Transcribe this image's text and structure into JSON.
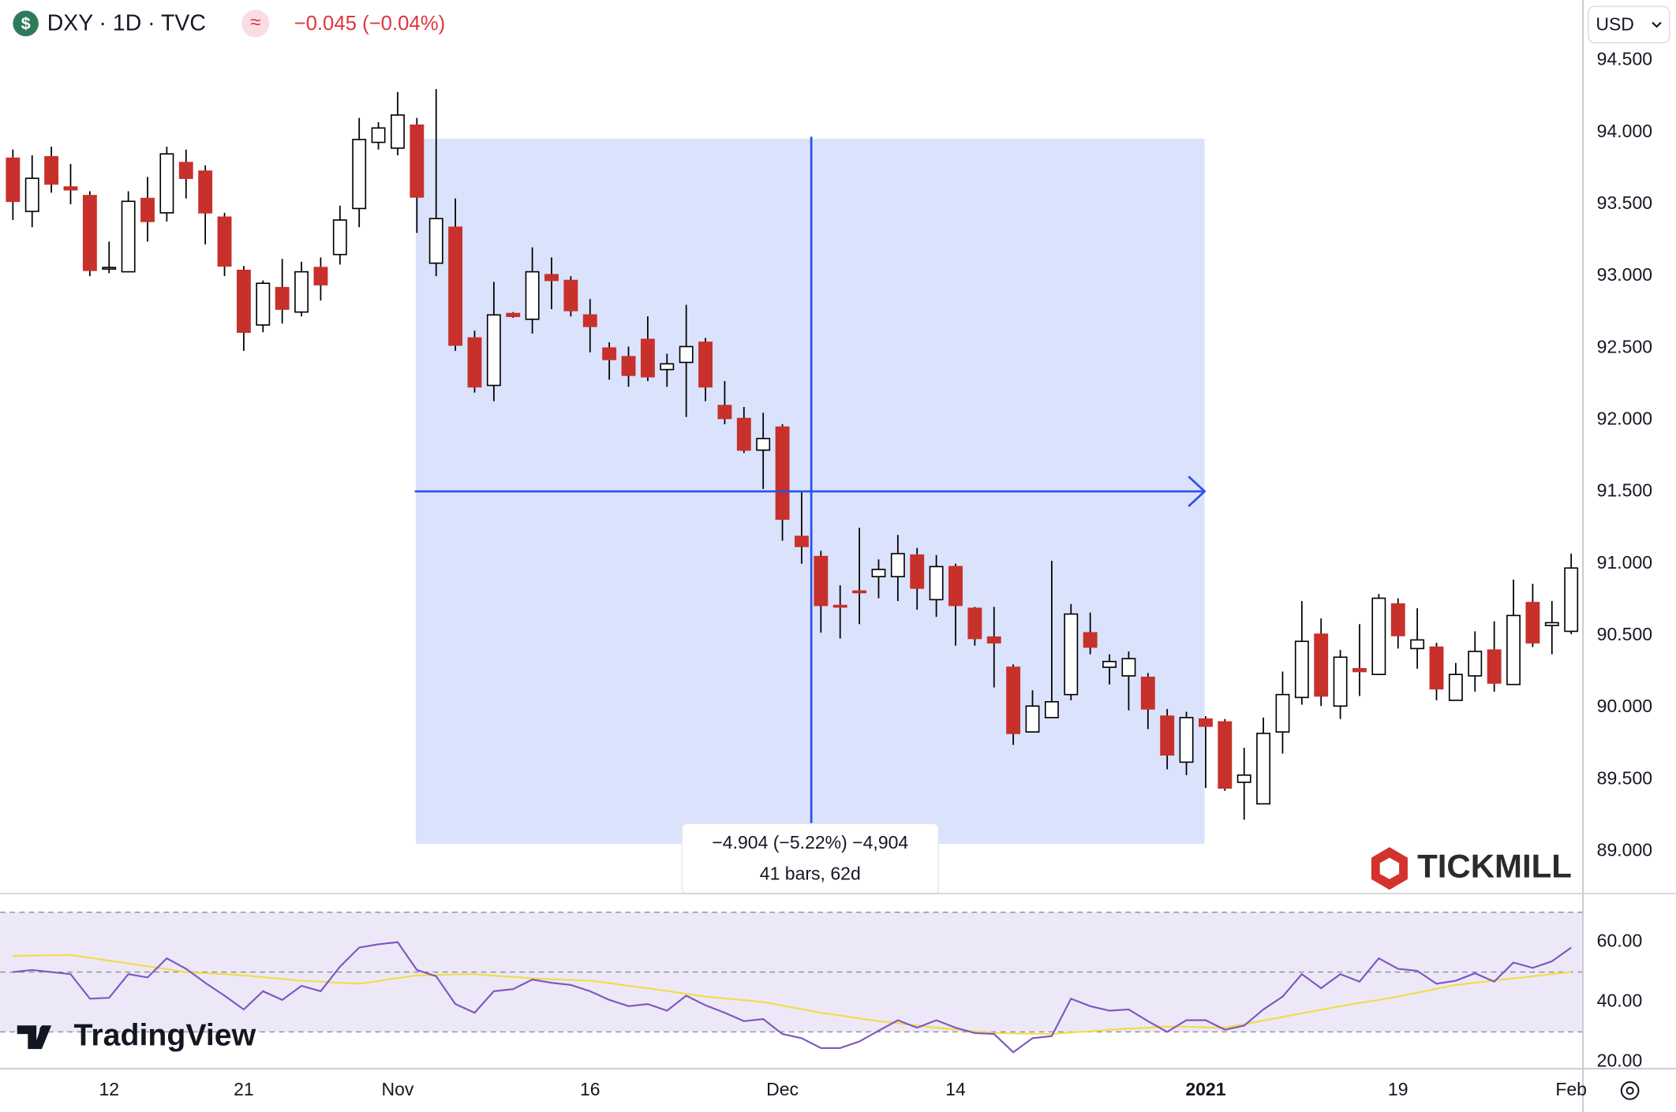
{
  "header": {
    "symbol_icon": "$",
    "symbol": "DXY · 1D · TVC",
    "indicator_icon": "≈",
    "change": "−0.045 (−0.04%)",
    "currency": "USD"
  },
  "measure": {
    "line1": "−4.904 (−5.22%) −4,904",
    "line2": "41 bars, 62d"
  },
  "branding": {
    "broker": "TICKMILL",
    "platform": "TradingView"
  },
  "chart_data": [
    {
      "type": "candlestick",
      "categories": [
        null,
        null,
        null,
        null,
        null,
        "12",
        null,
        null,
        null,
        null,
        null,
        null,
        "21",
        null,
        null,
        null,
        null,
        null,
        null,
        null,
        "Nov",
        null,
        null,
        null,
        null,
        null,
        null,
        null,
        null,
        null,
        "16",
        null,
        null,
        null,
        null,
        null,
        null,
        null,
        null,
        null,
        "Dec",
        null,
        null,
        null,
        null,
        null,
        null,
        null,
        null,
        "14",
        null,
        null,
        null,
        null,
        null,
        null,
        null,
        null,
        null,
        null,
        null,
        null,
        "2021",
        null,
        null,
        null,
        null,
        null,
        null,
        null,
        null,
        null,
        "19",
        null,
        null,
        null,
        null,
        null,
        null,
        null,
        null,
        "Feb"
      ],
      "open": [
        93.82,
        93.45,
        93.83,
        93.62,
        93.56,
        93.05,
        93.03,
        93.54,
        93.44,
        93.79,
        93.73,
        93.41,
        93.04,
        92.66,
        92.92,
        92.75,
        93.06,
        93.15,
        93.47,
        93.93,
        93.89,
        94.05,
        93.09,
        93.34,
        92.57,
        92.24,
        92.74,
        92.7,
        93.01,
        92.97,
        92.73,
        92.5,
        92.44,
        92.56,
        92.35,
        92.4,
        92.54,
        92.1,
        92.01,
        91.79,
        91.95,
        91.19,
        91.05,
        90.71,
        90.81,
        90.91,
        90.91,
        91.06,
        90.75,
        90.98,
        90.69,
        90.49,
        90.28,
        89.83,
        89.93,
        90.09,
        90.52,
        90.28,
        90.22,
        90.21,
        89.94,
        89.62,
        89.92,
        89.9,
        89.48,
        89.33,
        89.83,
        90.07,
        90.51,
        90.01,
        90.27,
        90.23,
        90.72,
        90.41,
        90.42,
        90.05,
        90.22,
        90.4,
        90.16,
        90.73,
        90.57,
        90.53
      ],
      "high": [
        93.88,
        93.84,
        93.9,
        93.78,
        93.59,
        93.24,
        93.59,
        93.69,
        93.9,
        93.88,
        93.77,
        93.44,
        93.07,
        92.97,
        93.12,
        93.1,
        93.13,
        93.49,
        94.1,
        94.07,
        94.28,
        94.1,
        94.3,
        93.54,
        92.62,
        92.96,
        92.75,
        93.2,
        93.13,
        93.0,
        92.84,
        92.54,
        92.51,
        92.72,
        92.46,
        92.8,
        92.57,
        92.27,
        92.09,
        92.05,
        91.97,
        91.5,
        91.09,
        90.85,
        91.25,
        91.03,
        91.2,
        91.11,
        91.06,
        91.0,
        90.7,
        90.7,
        90.3,
        90.12,
        91.02,
        90.72,
        90.66,
        90.37,
        90.39,
        90.24,
        89.99,
        89.97,
        89.94,
        89.92,
        89.72,
        89.93,
        90.25,
        90.74,
        90.62,
        90.4,
        90.58,
        90.79,
        90.76,
        90.69,
        90.45,
        90.31,
        90.53,
        90.6,
        90.89,
        90.86,
        90.74,
        91.07
      ],
      "low": [
        93.39,
        93.34,
        93.58,
        93.5,
        93.0,
        93.02,
        93.03,
        93.24,
        93.38,
        93.54,
        93.22,
        93.0,
        92.48,
        92.61,
        92.67,
        92.72,
        92.83,
        93.08,
        93.34,
        93.88,
        93.84,
        93.3,
        93.0,
        92.48,
        92.19,
        92.13,
        92.71,
        92.6,
        92.77,
        92.72,
        92.47,
        92.28,
        92.23,
        92.27,
        92.23,
        92.02,
        92.13,
        91.97,
        91.77,
        91.52,
        91.16,
        91.0,
        90.52,
        90.48,
        90.58,
        90.76,
        90.74,
        90.68,
        90.63,
        90.43,
        90.43,
        90.14,
        89.74,
        89.83,
        89.93,
        90.05,
        90.37,
        90.16,
        89.98,
        89.85,
        89.57,
        89.53,
        89.44,
        89.42,
        89.22,
        89.33,
        89.68,
        90.02,
        90.01,
        89.92,
        90.08,
        90.23,
        90.41,
        90.27,
        90.05,
        90.05,
        90.11,
        90.11,
        90.16,
        90.42,
        90.37,
        90.51
      ],
      "close": [
        93.52,
        93.68,
        93.64,
        93.6,
        93.04,
        93.06,
        93.52,
        93.38,
        93.85,
        93.68,
        93.44,
        93.07,
        92.61,
        92.95,
        92.77,
        93.03,
        92.94,
        93.39,
        93.95,
        94.03,
        94.12,
        93.55,
        93.4,
        92.52,
        92.23,
        92.73,
        92.72,
        93.03,
        92.97,
        92.76,
        92.65,
        92.42,
        92.31,
        92.3,
        92.39,
        92.51,
        92.23,
        92.01,
        91.79,
        91.87,
        91.31,
        91.12,
        90.71,
        90.7,
        90.8,
        90.96,
        91.07,
        90.83,
        90.98,
        90.71,
        90.48,
        90.45,
        89.82,
        90.01,
        90.04,
        90.65,
        90.42,
        90.32,
        90.34,
        89.99,
        89.67,
        89.93,
        89.87,
        89.44,
        89.53,
        89.82,
        90.09,
        90.46,
        90.08,
        90.35,
        90.25,
        90.76,
        90.5,
        90.47,
        90.13,
        90.23,
        90.39,
        90.17,
        90.64,
        90.45,
        90.59,
        90.97
      ],
      "up_color": "#ffffff",
      "down_color": "#c8302c",
      "border_color": "#000000",
      "ylim": [
        88.71,
        94.92
      ],
      "yticks": [
        {
          "value": 89,
          "label": "89.000"
        },
        {
          "value": 89.5,
          "label": "89.500"
        },
        {
          "value": 90,
          "label": "90.000"
        },
        {
          "value": 90.5,
          "label": "90.500"
        },
        {
          "value": 91,
          "label": "91.000"
        },
        {
          "value": 91.5,
          "label": "91.500"
        },
        {
          "value": 92,
          "label": "92.000"
        },
        {
          "value": 92.5,
          "label": "92.500"
        },
        {
          "value": 93,
          "label": "93.000"
        },
        {
          "value": 93.5,
          "label": "93.500"
        },
        {
          "value": 94,
          "label": "94.000"
        },
        {
          "value": 94.5,
          "label": "94.500"
        }
      ]
    },
    {
      "type": "line",
      "series": [
        {
          "color": "#7e57c2",
          "values": [
            50.0,
            50.7,
            50.0,
            49.3,
            41.1,
            41.4,
            49.3,
            48.2,
            54.6,
            51.1,
            46.4,
            42.1,
            37.5,
            43.6,
            40.7,
            45.4,
            43.6,
            51.8,
            58.2,
            59.3,
            60.0,
            50.7,
            48.6,
            39.3,
            36.4,
            43.6,
            44.3,
            47.5,
            46.4,
            45.7,
            43.6,
            40.7,
            38.6,
            39.3,
            37.1,
            42.1,
            38.9,
            36.4,
            33.6,
            34.3,
            29.3,
            27.9,
            24.6,
            24.6,
            26.8,
            30.4,
            33.9,
            31.4,
            33.9,
            31.4,
            29.6,
            29.3,
            23.2,
            27.9,
            28.6,
            41.1,
            38.6,
            37.1,
            37.5,
            33.6,
            30.0,
            33.9,
            33.9,
            30.7,
            32.1,
            37.5,
            41.8,
            49.3,
            44.6,
            49.3,
            46.8,
            54.6,
            51.1,
            50.4,
            46.1,
            47.1,
            49.6,
            46.8,
            53.2,
            51.4,
            53.6,
            58.2
          ]
        },
        {
          "color": "#f2dc4a",
          "values": [
            55.4,
            55.5,
            55.6,
            55.7,
            54.8,
            53.8,
            52.9,
            51.9,
            51.0,
            50.0,
            49.6,
            49.3,
            48.9,
            48.3,
            47.7,
            47.1,
            46.8,
            46.4,
            46.1,
            47.0,
            48.0,
            48.9,
            49.0,
            49.2,
            49.3,
            48.8,
            48.4,
            47.9,
            47.6,
            47.4,
            47.1,
            46.3,
            45.4,
            44.6,
            43.7,
            42.7,
            41.8,
            41.2,
            40.6,
            40.0,
            38.8,
            37.6,
            36.4,
            35.5,
            34.5,
            33.6,
            32.9,
            32.1,
            31.4,
            30.8,
            30.2,
            29.6,
            29.5,
            29.4,
            29.3,
            29.8,
            30.2,
            30.7,
            31.1,
            31.4,
            31.8,
            31.7,
            31.5,
            31.4,
            32.6,
            33.8,
            35.0,
            36.2,
            37.4,
            38.6,
            39.7,
            40.7,
            41.8,
            43.1,
            44.4,
            45.7,
            46.4,
            47.2,
            47.9,
            48.6,
            49.3,
            50.0
          ]
        }
      ],
      "hlines": [
        70,
        50,
        30
      ],
      "band_color": "#ede8f7",
      "ylim": [
        17.86,
        76.07
      ],
      "yticks": [
        {
          "value": 20,
          "label": "20.00"
        },
        {
          "value": 40,
          "label": "40.00"
        },
        {
          "value": 60,
          "label": "60.00"
        }
      ]
    }
  ]
}
